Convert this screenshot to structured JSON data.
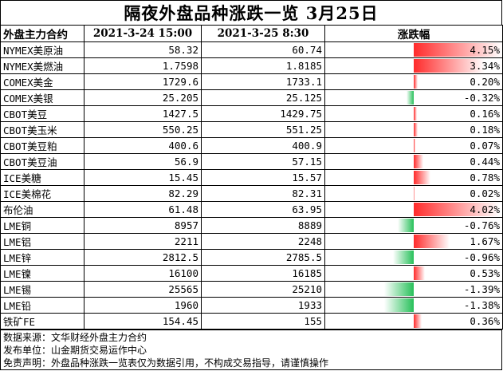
{
  "title": "隔夜外盘品种涨跌一览 3月25日",
  "headers": {
    "name": "外盘主力合约",
    "date1": "2021-3-24 15:00",
    "date2": "2021-3-25 8:30",
    "change": "涨跌幅"
  },
  "colors": {
    "up": "#ff2b2b",
    "down": "#27c05a"
  },
  "rows": [
    {
      "name": "NYMEX美原油",
      "p1": "58.32",
      "p2": "60.74",
      "pct": "4.15%",
      "v": 4.15
    },
    {
      "name": "NYMEX美燃油",
      "p1": "1.7598",
      "p2": "1.8185",
      "pct": "3.34%",
      "v": 3.34
    },
    {
      "name": "COMEX美金",
      "p1": "1729.6",
      "p2": "1733.1",
      "pct": "0.20%",
      "v": 0.2
    },
    {
      "name": "COMEX美银",
      "p1": "25.205",
      "p2": "25.125",
      "pct": "-0.32%",
      "v": -0.32
    },
    {
      "name": "CBOT美豆",
      "p1": "1427.5",
      "p2": "1429.75",
      "pct": "0.16%",
      "v": 0.16
    },
    {
      "name": "CBOT美玉米",
      "p1": "550.25",
      "p2": "551.25",
      "pct": "0.18%",
      "v": 0.18
    },
    {
      "name": "CBOT美豆粕",
      "p1": "400.6",
      "p2": "400.9",
      "pct": "0.07%",
      "v": 0.07
    },
    {
      "name": "CBOT美豆油",
      "p1": "56.9",
      "p2": "57.15",
      "pct": "0.44%",
      "v": 0.44
    },
    {
      "name": "ICE美糖",
      "p1": "15.45",
      "p2": "15.57",
      "pct": "0.78%",
      "v": 0.78
    },
    {
      "name": "ICE美棉花",
      "p1": "82.29",
      "p2": "82.31",
      "pct": "0.02%",
      "v": 0.02
    },
    {
      "name": "布伦油",
      "p1": "61.48",
      "p2": "63.95",
      "pct": "4.02%",
      "v": 4.02
    },
    {
      "name": "LME铜",
      "p1": "8957",
      "p2": "8889",
      "pct": "-0.76%",
      "v": -0.76
    },
    {
      "name": "LME铝",
      "p1": "2211",
      "p2": "2248",
      "pct": "1.67%",
      "v": 1.67
    },
    {
      "name": "LME锌",
      "p1": "2812.5",
      "p2": "2785.5",
      "pct": "-0.96%",
      "v": -0.96
    },
    {
      "name": "LME镍",
      "p1": "16100",
      "p2": "16185",
      "pct": "0.53%",
      "v": 0.53
    },
    {
      "name": "LME锡",
      "p1": "25565",
      "p2": "25210",
      "pct": "-1.39%",
      "v": -1.39
    },
    {
      "name": "LME铅",
      "p1": "1960",
      "p2": "1933",
      "pct": "-1.38%",
      "v": -1.38
    },
    {
      "name": "铁矿FE",
      "p1": "154.45",
      "p2": "155",
      "pct": "0.36%",
      "v": 0.36
    }
  ],
  "footer": {
    "source": "数据来源：文华财经外盘主力合约",
    "publisher": "发布单位：山金期货交易运作中心",
    "disclaimer": "免责声明：外盘品种涨跌一览表仅为数据引用，不构成交易指导，请谨慎操作"
  }
}
